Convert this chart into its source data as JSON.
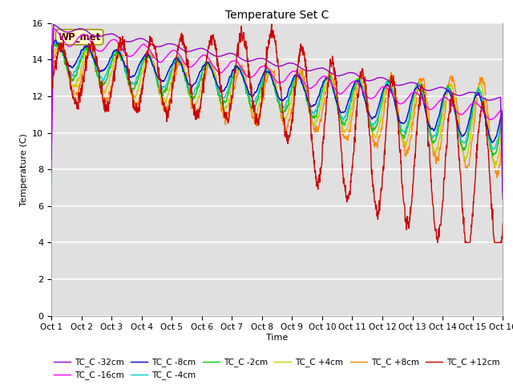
{
  "title": "Temperature Set C",
  "xlabel": "Time",
  "ylabel": "Temperature (C)",
  "ylim": [
    0,
    16
  ],
  "yticks": [
    0,
    2,
    4,
    6,
    8,
    10,
    12,
    14,
    16
  ],
  "xlim": [
    0,
    15
  ],
  "xtick_labels": [
    "Oct 1",
    "Oct 2",
    "Oct 3",
    "Oct 4",
    "Oct 5",
    "Oct 6",
    "Oct 7",
    "Oct 8",
    "Oct 9",
    "Oct 10",
    "Oct 11",
    "Oct 12",
    "Oct 13",
    "Oct 14",
    "Oct 15",
    "Oct 16"
  ],
  "bg_color": "#e0e0e0",
  "legend_label": "WP_met",
  "series_colors": {
    "TC_C -32cm": "#9900cc",
    "TC_C -16cm": "#ff00ff",
    "TC_C -8cm": "#0000cc",
    "TC_C -4cm": "#00cccc",
    "TC_C -2cm": "#00cc00",
    "TC_C +4cm": "#cccc00",
    "TC_C +8cm": "#ff8800",
    "TC_C +12cm": "#cc0000"
  },
  "legend_ncol": 6,
  "legend_ncol2": 2
}
